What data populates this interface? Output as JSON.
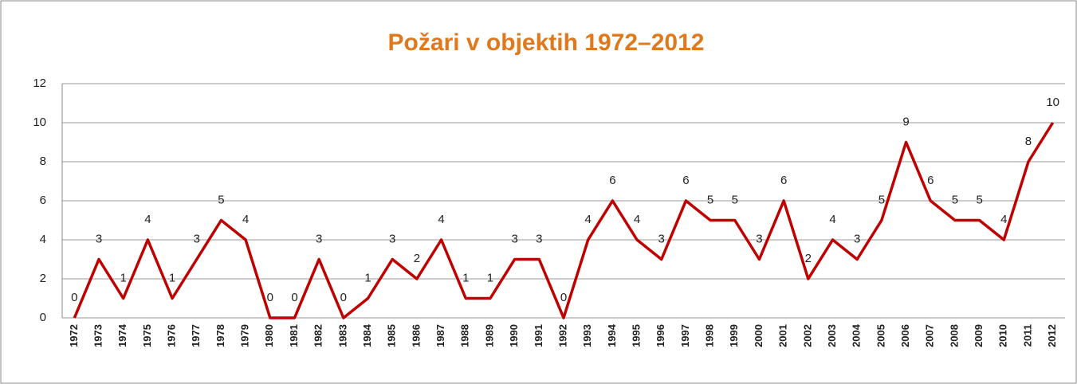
{
  "chart_data": {
    "type": "line",
    "title": "Požari v objektih 1972–2012",
    "categories": [
      "1972",
      "1973",
      "1974",
      "1975",
      "1976",
      "1977",
      "1978",
      "1979",
      "1980",
      "1981",
      "1982",
      "1983",
      "1984",
      "1985",
      "1986",
      "1987",
      "1988",
      "1989",
      "1990",
      "1991",
      "1992",
      "1993",
      "1994",
      "1995",
      "1996",
      "1997",
      "1998",
      "1999",
      "2000",
      "2001",
      "2002",
      "2003",
      "2004",
      "2005",
      "2006",
      "2007",
      "2008",
      "2009",
      "2010",
      "2011",
      "2012"
    ],
    "series": [
      {
        "name": "Požari",
        "color": "#c00000",
        "values": [
          0,
          3,
          1,
          4,
          1,
          3,
          5,
          4,
          0,
          0,
          3,
          0,
          1,
          3,
          2,
          4,
          1,
          1,
          3,
          3,
          0,
          4,
          6,
          4,
          3,
          6,
          5,
          5,
          3,
          6,
          2,
          4,
          3,
          5,
          9,
          6,
          5,
          5,
          4,
          8,
          10
        ]
      }
    ],
    "ylim": [
      0,
      12
    ],
    "yticks": [
      0,
      2,
      4,
      6,
      8,
      10,
      12
    ],
    "grid": true
  }
}
